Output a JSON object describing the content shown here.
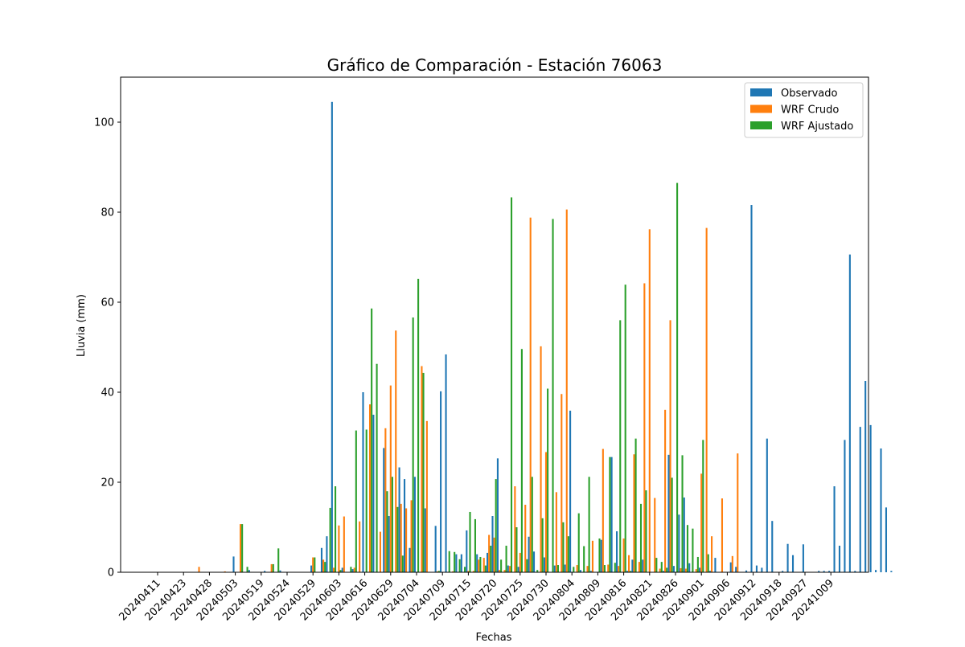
{
  "chart_data": {
    "type": "bar",
    "title": "Gráfico de Comparación - Estación 76063",
    "xlabel": "Fechas",
    "ylabel": "Lluvia (mm)",
    "ylim": [
      0,
      110
    ],
    "yticks": [
      0,
      20,
      40,
      60,
      80,
      100
    ],
    "grid": false,
    "legend_position": "top-right",
    "x_tick_labels": [
      "20240411",
      "20240423",
      "20240428",
      "20240503",
      "20240519",
      "20240524",
      "20240529",
      "20240603",
      "20240616",
      "20240629",
      "20240704",
      "20240709",
      "20240715",
      "20240720",
      "20240725",
      "20240730",
      "20240804",
      "20240809",
      "20240816",
      "20240821",
      "20240826",
      "20240901",
      "20240906",
      "20240912",
      "20240918",
      "20240927",
      "20241009"
    ],
    "series": [
      {
        "name": "Observado",
        "color": "#1f77b4",
        "points": [
          {
            "x": 15,
            "y": 3.5
          },
          {
            "x": 18,
            "y": 0.5
          },
          {
            "x": 21,
            "y": 0.3
          },
          {
            "x": 24,
            "y": 0.4
          },
          {
            "x": 30,
            "y": 1.5
          },
          {
            "x": 32,
            "y": 5.4
          },
          {
            "x": 33,
            "y": 8.0
          },
          {
            "x": 34,
            "y": 104.5
          },
          {
            "x": 36,
            "y": 1.0
          },
          {
            "x": 38,
            "y": 0.7
          },
          {
            "x": 40,
            "y": 40.0
          },
          {
            "x": 42,
            "y": 35.0
          },
          {
            "x": 44,
            "y": 27.6
          },
          {
            "x": 45,
            "y": 12.5
          },
          {
            "x": 47,
            "y": 23.3
          },
          {
            "x": 48,
            "y": 20.7
          },
          {
            "x": 49,
            "y": 5.4
          },
          {
            "x": 50,
            "y": 21.2
          },
          {
            "x": 52,
            "y": 14.2
          },
          {
            "x": 54,
            "y": 10.3
          },
          {
            "x": 55,
            "y": 40.2
          },
          {
            "x": 56,
            "y": 48.4
          },
          {
            "x": 58,
            "y": 4.0
          },
          {
            "x": 59,
            "y": 4.0
          },
          {
            "x": 60,
            "y": 9.3
          },
          {
            "x": 62,
            "y": 4.0
          },
          {
            "x": 64,
            "y": 4.3
          },
          {
            "x": 65,
            "y": 12.5
          },
          {
            "x": 66,
            "y": 25.3
          },
          {
            "x": 68,
            "y": 1.5
          },
          {
            "x": 70,
            "y": 1.2
          },
          {
            "x": 72,
            "y": 7.9
          },
          {
            "x": 73,
            "y": 4.6
          },
          {
            "x": 75,
            "y": 3.3
          },
          {
            "x": 77,
            "y": 1.5
          },
          {
            "x": 79,
            "y": 1.7
          },
          {
            "x": 80,
            "y": 35.9
          },
          {
            "x": 82,
            "y": 0.5
          },
          {
            "x": 84,
            "y": 0.3
          },
          {
            "x": 86,
            "y": 7.2
          },
          {
            "x": 88,
            "y": 25.6
          },
          {
            "x": 89,
            "y": 9.1
          },
          {
            "x": 91,
            "y": 0.3
          },
          {
            "x": 92,
            "y": 2.8
          },
          {
            "x": 94,
            "y": 2.8
          },
          {
            "x": 98,
            "y": 0.3
          },
          {
            "x": 99,
            "y": 26.1
          },
          {
            "x": 100,
            "y": 1.4
          },
          {
            "x": 101,
            "y": 12.8
          },
          {
            "x": 102,
            "y": 16.6
          },
          {
            "x": 103,
            "y": 2.0
          },
          {
            "x": 105,
            "y": 1.0
          },
          {
            "x": 107,
            "y": 0.3
          },
          {
            "x": 108,
            "y": 3.2
          },
          {
            "x": 111,
            "y": 2.2
          },
          {
            "x": 112,
            "y": 1.2
          },
          {
            "x": 114,
            "y": 0.4
          },
          {
            "x": 115,
            "y": 81.6
          },
          {
            "x": 116,
            "y": 1.5
          },
          {
            "x": 117,
            "y": 1.0
          },
          {
            "x": 118,
            "y": 29.7
          },
          {
            "x": 119,
            "y": 11.4
          },
          {
            "x": 121,
            "y": 0.3
          },
          {
            "x": 122,
            "y": 6.3
          },
          {
            "x": 123,
            "y": 3.8
          },
          {
            "x": 125,
            "y": 6.2
          },
          {
            "x": 128,
            "y": 0.3
          },
          {
            "x": 129,
            "y": 0.3
          },
          {
            "x": 130,
            "y": 0.3
          },
          {
            "x": 131,
            "y": 19.1
          },
          {
            "x": 132,
            "y": 5.9
          },
          {
            "x": 133,
            "y": 29.4
          },
          {
            "x": 134,
            "y": 70.6
          },
          {
            "x": 135,
            "y": 0.3
          },
          {
            "x": 136,
            "y": 32.3
          },
          {
            "x": 137,
            "y": 42.5
          },
          {
            "x": 138,
            "y": 32.7
          },
          {
            "x": 139,
            "y": 0.5
          },
          {
            "x": 140,
            "y": 27.5
          },
          {
            "x": 141,
            "y": 14.4
          },
          {
            "x": 142,
            "y": 0.3
          }
        ]
      },
      {
        "name": "WRF Crudo",
        "color": "#ff7f0e",
        "points": [
          {
            "x": 8,
            "y": 1.2
          },
          {
            "x": 13,
            "y": 0.2
          },
          {
            "x": 16,
            "y": 10.7
          },
          {
            "x": 22,
            "y": 1.8
          },
          {
            "x": 30,
            "y": 3.3
          },
          {
            "x": 32,
            "y": 2.8
          },
          {
            "x": 34,
            "y": 1.0
          },
          {
            "x": 35,
            "y": 10.4
          },
          {
            "x": 36,
            "y": 12.4
          },
          {
            "x": 38,
            "y": 1.0
          },
          {
            "x": 39,
            "y": 11.3
          },
          {
            "x": 41,
            "y": 37.3
          },
          {
            "x": 43,
            "y": 9.0
          },
          {
            "x": 44,
            "y": 32.0
          },
          {
            "x": 45,
            "y": 41.5
          },
          {
            "x": 46,
            "y": 53.7
          },
          {
            "x": 47,
            "y": 15.2
          },
          {
            "x": 48,
            "y": 14.2
          },
          {
            "x": 49,
            "y": 16.0
          },
          {
            "x": 51,
            "y": 45.8
          },
          {
            "x": 52,
            "y": 33.6
          },
          {
            "x": 54,
            "y": 0.2
          },
          {
            "x": 57,
            "y": 0.2
          },
          {
            "x": 60,
            "y": 0.3
          },
          {
            "x": 61,
            "y": 0.3
          },
          {
            "x": 62,
            "y": 2.8
          },
          {
            "x": 63,
            "y": 3.2
          },
          {
            "x": 64,
            "y": 8.3
          },
          {
            "x": 65,
            "y": 7.7
          },
          {
            "x": 66,
            "y": 0.5
          },
          {
            "x": 67,
            "y": 0.5
          },
          {
            "x": 68,
            "y": 1.4
          },
          {
            "x": 69,
            "y": 19.1
          },
          {
            "x": 70,
            "y": 4.3
          },
          {
            "x": 71,
            "y": 15.0
          },
          {
            "x": 72,
            "y": 78.8
          },
          {
            "x": 74,
            "y": 50.2
          },
          {
            "x": 75,
            "y": 26.7
          },
          {
            "x": 77,
            "y": 17.8
          },
          {
            "x": 78,
            "y": 39.6
          },
          {
            "x": 79,
            "y": 80.6
          },
          {
            "x": 81,
            "y": 1.6
          },
          {
            "x": 83,
            "y": 1.4
          },
          {
            "x": 84,
            "y": 7.0
          },
          {
            "x": 86,
            "y": 27.4
          },
          {
            "x": 87,
            "y": 1.7
          },
          {
            "x": 89,
            "y": 1.4
          },
          {
            "x": 90,
            "y": 7.5
          },
          {
            "x": 91,
            "y": 3.8
          },
          {
            "x": 92,
            "y": 26.2
          },
          {
            "x": 93,
            "y": 2.3
          },
          {
            "x": 94,
            "y": 64.2
          },
          {
            "x": 95,
            "y": 76.2
          },
          {
            "x": 96,
            "y": 16.5
          },
          {
            "x": 97,
            "y": 0.8
          },
          {
            "x": 98,
            "y": 36.1
          },
          {
            "x": 99,
            "y": 56.0
          },
          {
            "x": 101,
            "y": 0.9
          },
          {
            "x": 102,
            "y": 0.8
          },
          {
            "x": 104,
            "y": 0.7
          },
          {
            "x": 105,
            "y": 21.9
          },
          {
            "x": 106,
            "y": 76.5
          },
          {
            "x": 107,
            "y": 8.0
          },
          {
            "x": 109,
            "y": 16.4
          },
          {
            "x": 111,
            "y": 3.6
          },
          {
            "x": 112,
            "y": 26.4
          }
        ]
      },
      {
        "name": "WRF Ajustado",
        "color": "#2ca02c",
        "points": [
          {
            "x": 16,
            "y": 10.7
          },
          {
            "x": 17,
            "y": 1.2
          },
          {
            "x": 22,
            "y": 1.8
          },
          {
            "x": 23,
            "y": 5.3
          },
          {
            "x": 30,
            "y": 3.3
          },
          {
            "x": 32,
            "y": 2.3
          },
          {
            "x": 33,
            "y": 14.3
          },
          {
            "x": 34,
            "y": 19.1
          },
          {
            "x": 35,
            "y": 0.5
          },
          {
            "x": 37,
            "y": 1.2
          },
          {
            "x": 38,
            "y": 31.5
          },
          {
            "x": 40,
            "y": 31.7
          },
          {
            "x": 41,
            "y": 58.6
          },
          {
            "x": 42,
            "y": 46.3
          },
          {
            "x": 44,
            "y": 18.0
          },
          {
            "x": 45,
            "y": 21.2
          },
          {
            "x": 46,
            "y": 14.5
          },
          {
            "x": 47,
            "y": 3.7
          },
          {
            "x": 49,
            "y": 56.6
          },
          {
            "x": 50,
            "y": 65.2
          },
          {
            "x": 51,
            "y": 44.3
          },
          {
            "x": 54,
            "y": 0.3
          },
          {
            "x": 56,
            "y": 4.7
          },
          {
            "x": 57,
            "y": 4.5
          },
          {
            "x": 58,
            "y": 2.9
          },
          {
            "x": 59,
            "y": 1.2
          },
          {
            "x": 60,
            "y": 13.4
          },
          {
            "x": 61,
            "y": 11.8
          },
          {
            "x": 62,
            "y": 3.4
          },
          {
            "x": 63,
            "y": 1.5
          },
          {
            "x": 64,
            "y": 5.9
          },
          {
            "x": 65,
            "y": 20.7
          },
          {
            "x": 66,
            "y": 2.8
          },
          {
            "x": 67,
            "y": 5.9
          },
          {
            "x": 68,
            "y": 83.3
          },
          {
            "x": 69,
            "y": 10.0
          },
          {
            "x": 70,
            "y": 49.6
          },
          {
            "x": 71,
            "y": 2.9
          },
          {
            "x": 72,
            "y": 21.2
          },
          {
            "x": 73,
            "y": 0.5
          },
          {
            "x": 74,
            "y": 12.0
          },
          {
            "x": 75,
            "y": 40.8
          },
          {
            "x": 76,
            "y": 78.5
          },
          {
            "x": 77,
            "y": 1.6
          },
          {
            "x": 78,
            "y": 11.1
          },
          {
            "x": 79,
            "y": 8.0
          },
          {
            "x": 80,
            "y": 1.2
          },
          {
            "x": 81,
            "y": 13.1
          },
          {
            "x": 82,
            "y": 5.8
          },
          {
            "x": 83,
            "y": 21.2
          },
          {
            "x": 85,
            "y": 7.5
          },
          {
            "x": 86,
            "y": 1.6
          },
          {
            "x": 87,
            "y": 25.6
          },
          {
            "x": 88,
            "y": 2.1
          },
          {
            "x": 89,
            "y": 56.0
          },
          {
            "x": 90,
            "y": 63.9
          },
          {
            "x": 91,
            "y": 0.3
          },
          {
            "x": 92,
            "y": 29.7
          },
          {
            "x": 93,
            "y": 15.2
          },
          {
            "x": 94,
            "y": 18.2
          },
          {
            "x": 96,
            "y": 3.2
          },
          {
            "x": 97,
            "y": 2.3
          },
          {
            "x": 98,
            "y": 1.0
          },
          {
            "x": 99,
            "y": 21.0
          },
          {
            "x": 100,
            "y": 86.5
          },
          {
            "x": 101,
            "y": 26.0
          },
          {
            "x": 102,
            "y": 10.5
          },
          {
            "x": 103,
            "y": 9.7
          },
          {
            "x": 104,
            "y": 3.4
          },
          {
            "x": 105,
            "y": 29.4
          },
          {
            "x": 106,
            "y": 4.0
          }
        ]
      }
    ]
  }
}
